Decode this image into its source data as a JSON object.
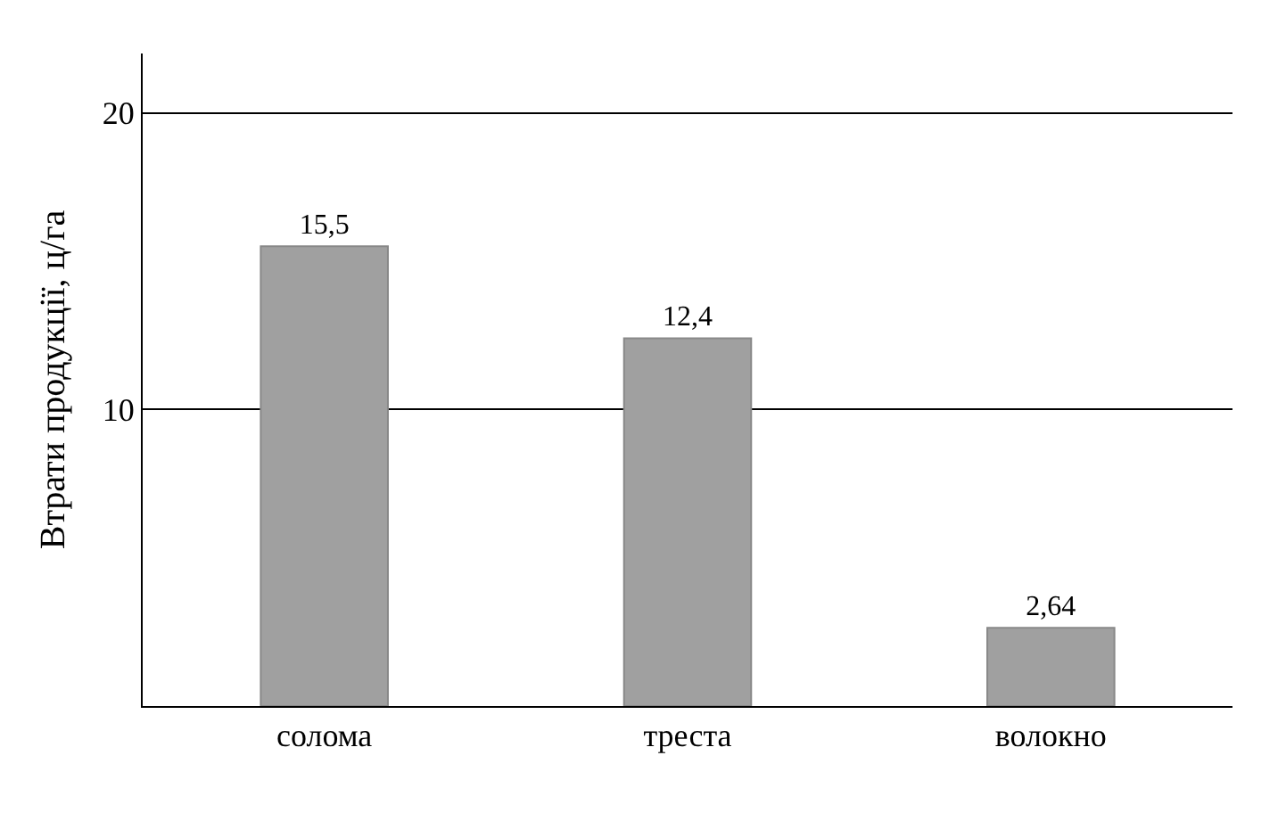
{
  "chart_data": {
    "type": "bar",
    "ylabel": "Втрати продукції, ц/га",
    "categories": [
      "солома",
      "треста",
      "волокно"
    ],
    "values": [
      15.5,
      12.4,
      2.64
    ],
    "value_labels": [
      "15,5",
      "12,4",
      "2,64"
    ],
    "color": "#a0a0a0",
    "ylim": [
      0,
      22
    ],
    "yticks": [
      {
        "value": 0,
        "label": null
      },
      10,
      20
    ],
    "grid": "y"
  }
}
